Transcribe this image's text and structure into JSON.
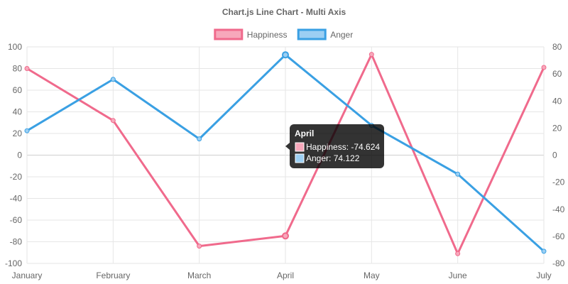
{
  "chart_data": {
    "type": "line",
    "title": "Chart.js Line Chart - Multi Axis",
    "legend_position": "top",
    "grid": true,
    "categories": [
      "January",
      "February",
      "March",
      "April",
      "May",
      "June",
      "July"
    ],
    "series": [
      {
        "name": "Happiness",
        "axis": "left",
        "color": "#f06a8c",
        "fill": "#f7a8bb",
        "values": [
          80,
          32,
          -84,
          -74.624,
          93,
          -91,
          81
        ]
      },
      {
        "name": "Anger",
        "axis": "right",
        "color": "#3aa0e3",
        "fill": "#9ccff3",
        "values": [
          18,
          56,
          12,
          74.122,
          22,
          -14,
          -71
        ]
      }
    ],
    "y_left": {
      "min": -100,
      "max": 100,
      "step": 20
    },
    "y_right": {
      "min": -80,
      "max": 80,
      "step": 20
    },
    "tooltip": {
      "title": "April",
      "lines": [
        "Happiness: -74.624",
        "Anger: 74.122"
      ]
    }
  }
}
